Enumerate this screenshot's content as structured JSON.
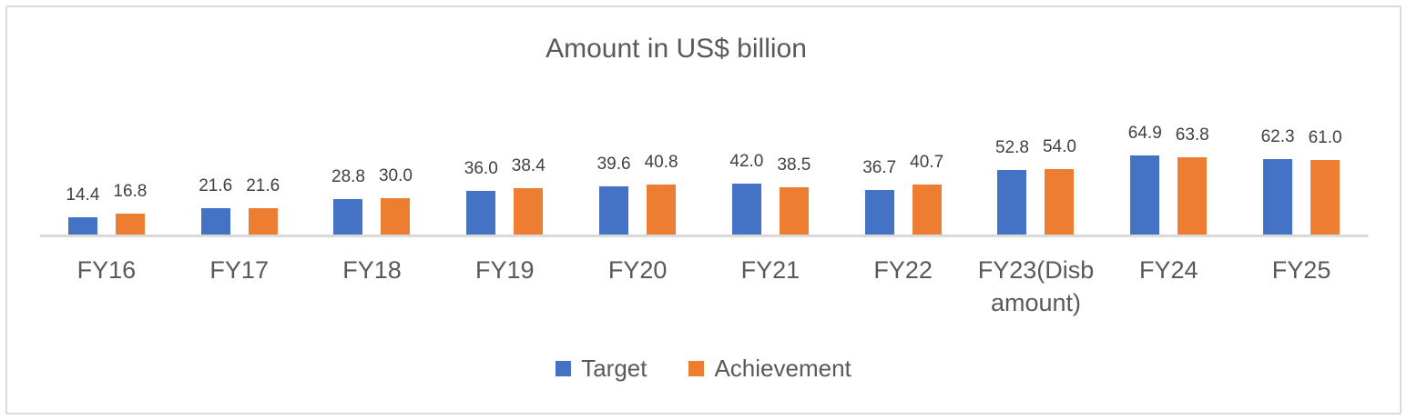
{
  "chart_data": {
    "type": "bar",
    "title": "Amount in US$ billion",
    "categories": [
      "FY16",
      "FY17",
      "FY18",
      "FY19",
      "FY20",
      "FY21",
      "FY22",
      "FY23(Disb amount)",
      "FY24",
      "FY25"
    ],
    "series": [
      {
        "name": "Target",
        "color": "#4472C4",
        "values": [
          14.4,
          21.6,
          28.8,
          36.0,
          39.6,
          42.0,
          36.7,
          52.8,
          64.9,
          62.3
        ]
      },
      {
        "name": "Achievement",
        "color": "#ED7D31",
        "values": [
          16.8,
          21.6,
          30.0,
          38.4,
          40.8,
          38.5,
          40.7,
          54.0,
          63.8,
          61.0
        ]
      }
    ],
    "xlabel": "",
    "ylabel": "",
    "ylim": [
      0,
      70
    ],
    "grid": false,
    "y_axis_visible": false,
    "data_labels": true,
    "data_label_format": "one-decimal",
    "legend_position": "bottom"
  },
  "legend": {
    "items": [
      {
        "label": "Target",
        "color": "#4472C4"
      },
      {
        "label": "Achievement",
        "color": "#ED7D31"
      }
    ]
  },
  "colors": {
    "target_bar": "#4472C4",
    "achievement_bar": "#ED7D31",
    "axis_line": "#d9d9d9",
    "frame_border": "#d9d9d9",
    "title_text": "#595959",
    "category_label_text": "#595959",
    "data_label_text": "#404040"
  }
}
